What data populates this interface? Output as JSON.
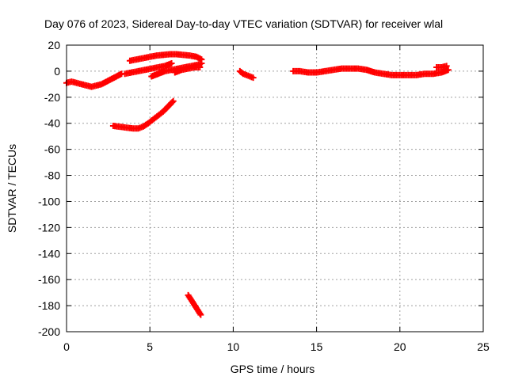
{
  "chart_data": {
    "type": "scatter",
    "title": "Day 076 of 2023, Sidereal Day-to-day VTEC variation (SDTVAR) for receiver wlal",
    "xlabel": "GPS time / hours",
    "ylabel": "SDTVAR / TECUs",
    "xlim": [
      0,
      25
    ],
    "ylim": [
      -200,
      20
    ],
    "xticks": [
      0,
      5,
      10,
      15,
      20,
      25
    ],
    "yticks": [
      20,
      0,
      -20,
      -40,
      -60,
      -80,
      -100,
      -120,
      -140,
      -160,
      -180,
      -200
    ],
    "grid": true,
    "legend": "none",
    "marker": "plus",
    "color": "#ff0000",
    "series": [
      {
        "x": [
          0.0,
          0.3,
          0.6,
          0.9,
          1.2,
          1.5,
          1.8,
          2.1,
          2.4,
          2.7,
          3.0,
          3.3
        ],
        "y": [
          -9,
          -8,
          -9,
          -10,
          -11,
          -12,
          -11,
          -10,
          -8,
          -6,
          -4,
          -2
        ]
      },
      {
        "x": [
          2.8,
          3.1,
          3.4,
          3.7,
          4.0,
          4.3,
          4.6,
          4.9,
          5.2,
          5.5,
          5.8,
          6.1,
          6.4
        ],
        "y": [
          -42,
          -42.5,
          -43,
          -43.5,
          -44,
          -44,
          -42.5,
          -40,
          -37,
          -34,
          -31,
          -27,
          -23
        ]
      },
      {
        "x": [
          3.5,
          3.9,
          4.3,
          4.7,
          5.1,
          5.5,
          5.9,
          6.3
        ],
        "y": [
          -2,
          -1,
          0,
          1,
          2,
          3,
          4,
          6
        ]
      },
      {
        "x": [
          3.8,
          4.2,
          4.6,
          5.0,
          5.4,
          5.8,
          6.2,
          6.6,
          7.0,
          7.4,
          7.8,
          8.1
        ],
        "y": [
          8,
          9,
          10,
          11,
          12,
          12.5,
          13,
          13,
          12.5,
          12,
          11,
          9
        ]
      },
      {
        "x": [
          5.1,
          5.5,
          5.9,
          6.3,
          6.7,
          7.1,
          7.5,
          7.9,
          8.1
        ],
        "y": [
          -4,
          -2,
          0,
          1,
          2,
          3,
          4,
          5,
          6
        ]
      },
      {
        "x": [
          6.5,
          6.9,
          7.3,
          7.7,
          8.0
        ],
        "y": [
          -1,
          1,
          2,
          3,
          3
        ]
      },
      {
        "x": [
          7.3,
          7.45,
          7.6,
          7.75,
          7.9,
          8.05
        ],
        "y": [
          -172,
          -175,
          -178,
          -181,
          -184,
          -187
        ]
      },
      {
        "x": [
          10.4,
          10.6,
          10.8,
          11.0,
          11.2
        ],
        "y": [
          0,
          -2,
          -3,
          -4,
          -5
        ]
      },
      {
        "x": [
          13.6,
          14.0,
          14.5,
          15.0,
          15.5,
          16.0,
          16.5,
          17.0,
          17.5,
          18.0,
          18.5,
          19.0,
          19.5,
          20.0,
          20.5,
          21.0,
          21.5,
          22.0,
          22.5,
          22.9
        ],
        "y": [
          0,
          0,
          -1,
          -1,
          0,
          1,
          2,
          2,
          2,
          1,
          -1,
          -2,
          -3,
          -3,
          -3,
          -3,
          -2,
          -2,
          -1,
          1
        ]
      },
      {
        "x": [
          22.2,
          22.5,
          22.8
        ],
        "y": [
          3,
          3,
          4
        ]
      }
    ]
  }
}
